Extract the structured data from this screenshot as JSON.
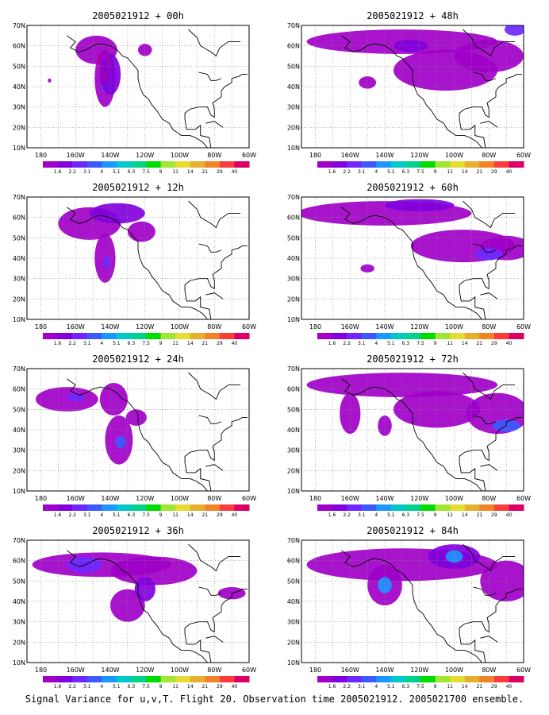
{
  "caption": "Signal Variance for u,v,T. Flight 20. Observation time 2005021912. 2005021700 ensemble.",
  "lat_labels": [
    "70N",
    "60N",
    "50N",
    "40N",
    "30N",
    "20N",
    "10N"
  ],
  "lon_labels": [
    "180",
    "160W",
    "140W",
    "120W",
    "100W",
    "80W",
    "60W"
  ],
  "colorbar": {
    "labels": [
      "1.6",
      "2.2",
      "3.1",
      "4",
      "5.1",
      "6.3",
      "7.5",
      "9",
      "11",
      "14",
      "21",
      "29",
      "40"
    ],
    "colors": [
      "#a000c8",
      "#8200dc",
      "#6e28ff",
      "#3c5aff",
      "#1e96ff",
      "#00c8c8",
      "#00d28c",
      "#00dc00",
      "#a0e632",
      "#e6dc32",
      "#e6af2d",
      "#f08228",
      "#fa3c3c",
      "#dc0064"
    ]
  },
  "panels": [
    {
      "title": "2005021912 + 00h"
    },
    {
      "title": "2005021912 + 48h"
    },
    {
      "title": "2005021912 + 12h"
    },
    {
      "title": "2005021912 + 60h"
    },
    {
      "title": "2005021912 + 24h"
    },
    {
      "title": "2005021912 + 72h"
    },
    {
      "title": "2005021912 + 36h"
    },
    {
      "title": "2005021912 + 84h"
    }
  ]
}
